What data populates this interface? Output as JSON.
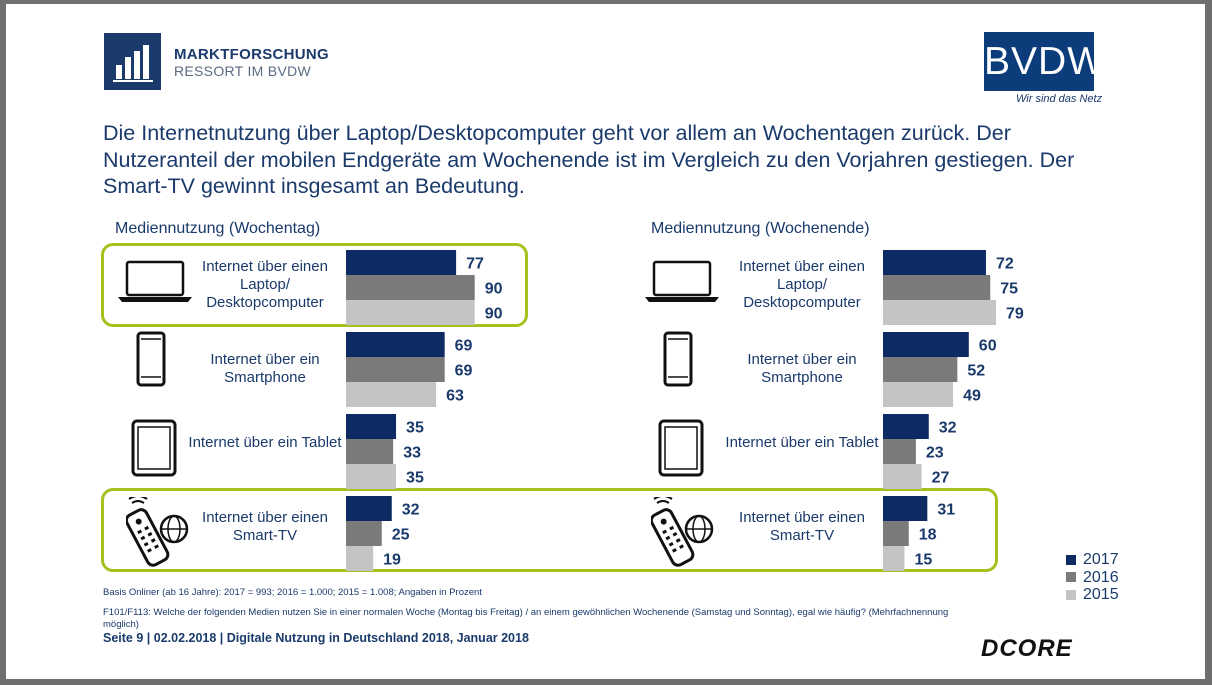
{
  "header": {
    "logo_title": "MARKTFORSCHUNG",
    "logo_subtitle": "RESSORT IM BVDW",
    "brand": "BVDW",
    "brand_tagline": "Wir sind das Netz"
  },
  "headline": "Die Internetnutzung über Laptop/Desktopcomputer geht vor allem an Wochentagen zurück. Der Nutzeranteil der mobilen Endgeräte am Wochenende ist im Vergleich zu den Vorjahren gestiegen. Der Smart-TV gewinnt insgesamt an Bedeutung.",
  "colors": {
    "2017": "#0d2a63",
    "2016": "#7a7a7a",
    "2015": "#c4c4c4",
    "highlight": "#a6c01e",
    "text": "#1a3a6b"
  },
  "chart_data": [
    {
      "type": "bar",
      "title": "Mediennutzung (Wochentag)",
      "categories": [
        "Internet über einen Laptop/ Desktopcomputer",
        "Internet über ein Smartphone",
        "Internet über ein Tablet",
        "Internet über einen Smart-TV"
      ],
      "series": [
        {
          "name": "2017",
          "values": [
            77,
            69,
            35,
            32
          ]
        },
        {
          "name": "2016",
          "values": [
            90,
            69,
            33,
            25
          ]
        },
        {
          "name": "2015",
          "values": [
            90,
            63,
            35,
            19
          ]
        }
      ],
      "unit": "Prozent",
      "xlim": [
        0,
        100
      ],
      "icons": [
        "laptop-icon",
        "smartphone-icon",
        "tablet-icon",
        "smart-tv-remote-icon"
      ],
      "highlighted_categories": [
        0,
        3
      ]
    },
    {
      "type": "bar",
      "title": "Mediennutzung (Wochenende)",
      "categories": [
        "Internet über einen Laptop/ Desktopcomputer",
        "Internet über ein Smartphone",
        "Internet über ein Tablet",
        "Internet über einen Smart-TV"
      ],
      "series": [
        {
          "name": "2017",
          "values": [
            72,
            60,
            32,
            31
          ]
        },
        {
          "name": "2016",
          "values": [
            75,
            52,
            23,
            18
          ]
        },
        {
          "name": "2015",
          "values": [
            79,
            49,
            27,
            15
          ]
        }
      ],
      "unit": "Prozent",
      "xlim": [
        0,
        100
      ],
      "icons": [
        "laptop-icon",
        "smartphone-icon",
        "tablet-icon",
        "smart-tv-remote-icon"
      ],
      "highlighted_categories": [
        3
      ]
    }
  ],
  "legend": [
    "2017",
    "2016",
    "2015"
  ],
  "footnotes": {
    "basis": "Basis Onliner (ab 16 Jahre): 2017 = 993; 2016 = 1.000; 2015 = 1.008; Angaben in Prozent",
    "question": "F101/F113: Welche der folgenden Medien nutzen Sie in einer normalen Woche (Montag bis Freitag) / an einem gewöhnlichen Wochenende (Samstag und Sonntag), egal wie häufig? (Mehrfachnennung möglich)"
  },
  "footer": {
    "text": "Seite 9 | 02.02.2018 | Digitale Nutzung in Deutschland 2018, Januar 2018",
    "partner": "DCORE"
  }
}
